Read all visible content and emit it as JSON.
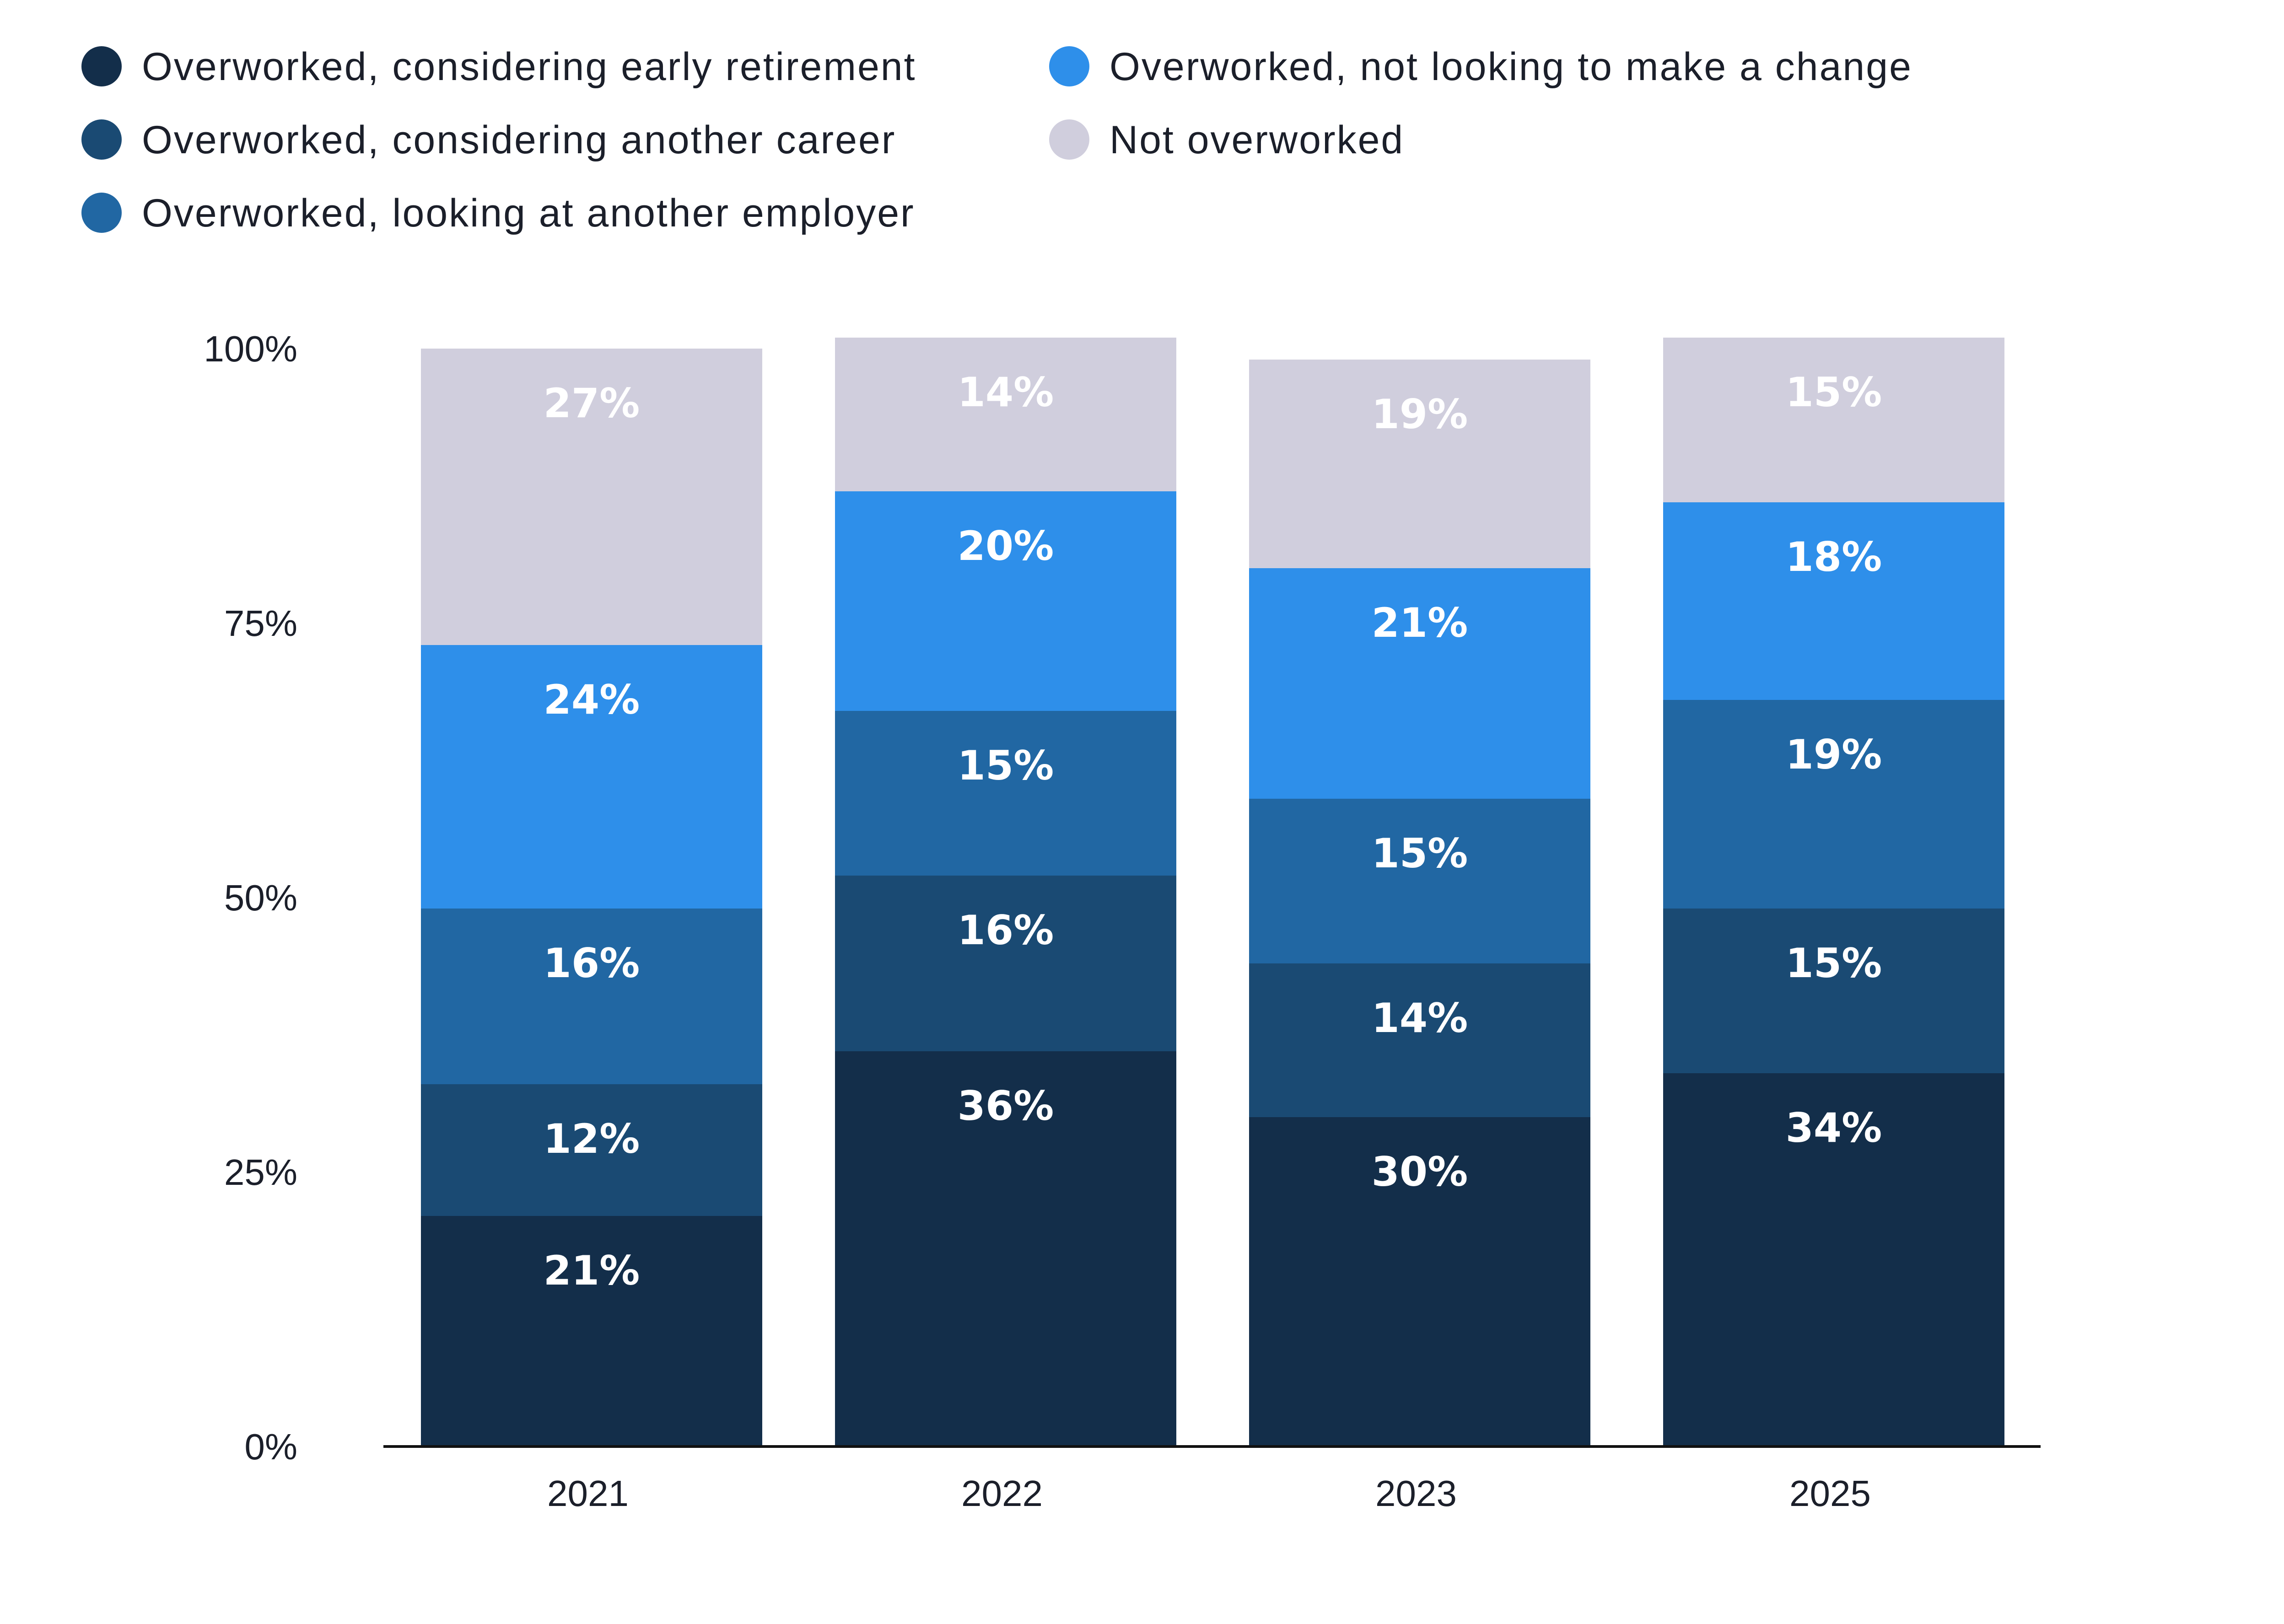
{
  "chart_data": {
    "type": "bar",
    "stacked": true,
    "categories": [
      "2021",
      "2022",
      "2023",
      "2025"
    ],
    "series": [
      {
        "name": "Overworked, considering early retirement",
        "color": "#132e4a",
        "values": [
          21,
          36,
          30,
          34
        ]
      },
      {
        "name": "Overworked, considering another career",
        "color": "#1a4a73",
        "values": [
          12,
          16,
          14,
          15
        ]
      },
      {
        "name": "Overworked, looking at another employer",
        "color": "#2167a3",
        "values": [
          16,
          15,
          15,
          19
        ]
      },
      {
        "name": "Overworked, not looking to make a change",
        "color": "#2e8fea",
        "values": [
          24,
          20,
          21,
          18
        ]
      },
      {
        "name": "Not overworked",
        "color": "#d0cedd",
        "values": [
          27,
          14,
          19,
          15
        ]
      }
    ],
    "data_labels": [
      [
        "21%",
        "36%",
        "30%",
        "34%"
      ],
      [
        "12%",
        "16%",
        "14%",
        "15%"
      ],
      [
        "16%",
        "15%",
        "15%",
        "19%"
      ],
      [
        "24%",
        "20%",
        "21%",
        "18%"
      ],
      [
        "27%",
        "14%",
        "19%",
        "15%"
      ]
    ],
    "ylim": [
      0,
      100
    ],
    "yticks": [
      "0%",
      "25%",
      "50%",
      "75%",
      "100%"
    ],
    "grid": false,
    "legend_position": "top-left"
  }
}
